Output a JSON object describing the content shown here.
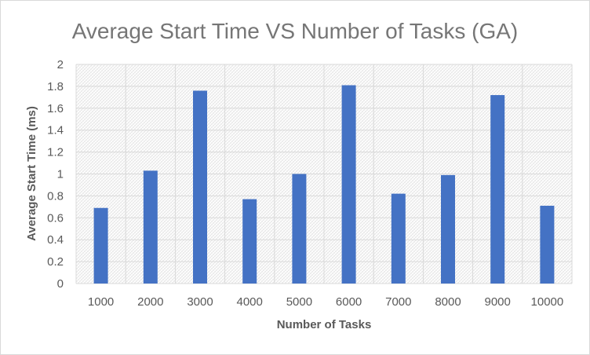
{
  "chart_data": {
    "type": "bar",
    "title": "Average Start Time VS Number of Tasks (GA)",
    "xlabel": "Number of Tasks",
    "ylabel": "Average Start Time (ms)",
    "categories": [
      "1000",
      "2000",
      "3000",
      "4000",
      "5000",
      "6000",
      "7000",
      "8000",
      "9000",
      "10000"
    ],
    "series": [
      {
        "values": [
          0.69,
          1.03,
          1.76,
          0.77,
          1.0,
          1.81,
          0.82,
          0.99,
          1.72,
          0.71
        ]
      }
    ],
    "ylim": [
      0,
      2
    ],
    "yticks": [
      "0",
      "0.2",
      "0.4",
      "0.6",
      "0.8",
      "1",
      "1.2",
      "1.4",
      "1.6",
      "1.8",
      "2"
    ],
    "grid": true,
    "legend": "none",
    "bar_color": "#4472c4",
    "grid_color": "#d9d9d9"
  }
}
